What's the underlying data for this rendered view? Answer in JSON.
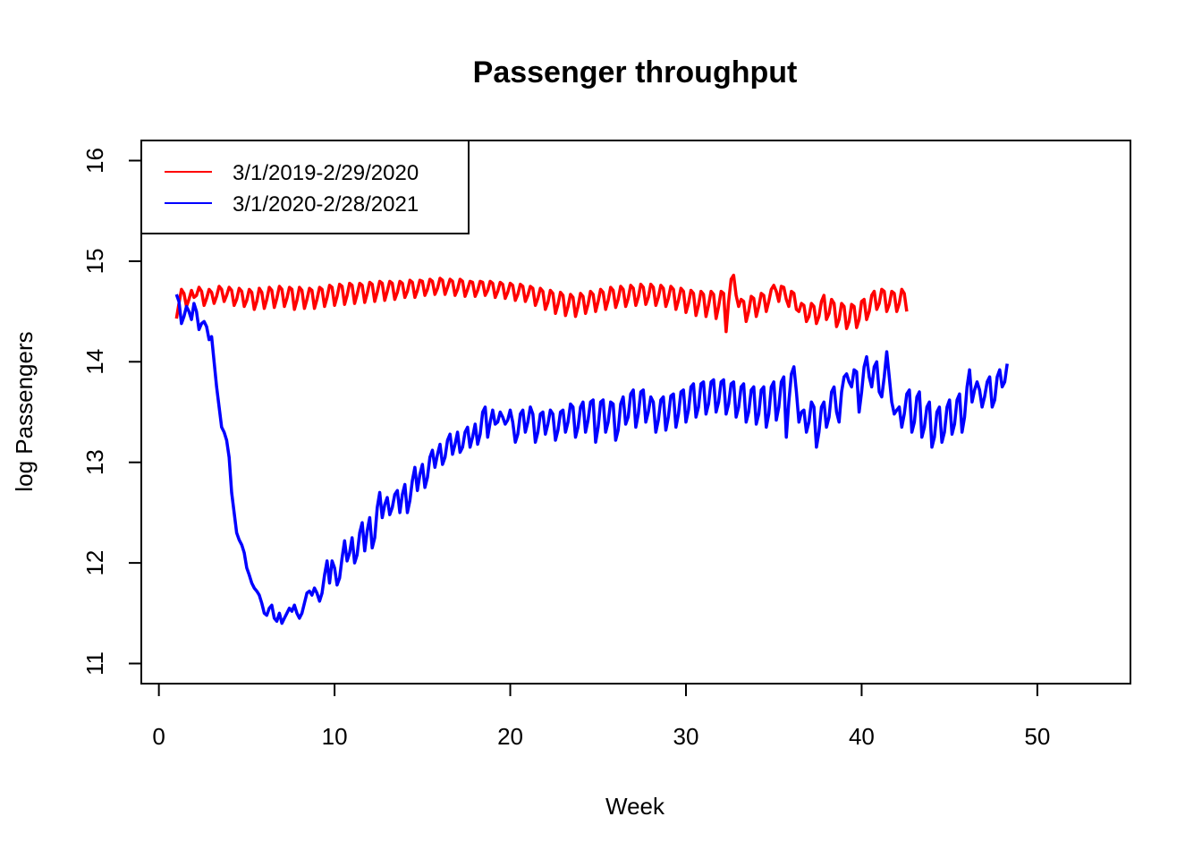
{
  "chart_data": {
    "type": "line",
    "title": "Passenger throughput",
    "xlabel": "Week",
    "ylabel": "log Passengers",
    "xlim": [
      -1,
      55.3
    ],
    "ylim": [
      10.8,
      16.2
    ],
    "x_ticks": [
      0,
      10,
      20,
      30,
      40,
      50
    ],
    "y_ticks": [
      11,
      12,
      13,
      14,
      15,
      16
    ],
    "legend_position": "top-left",
    "series": [
      {
        "name": "3/1/2019-2/29/2020",
        "color": "#ff0000",
        "x_start": 1,
        "x_step": 0.142857,
        "values": [
          14.43,
          14.58,
          14.72,
          14.68,
          14.55,
          14.62,
          14.71,
          14.64,
          14.66,
          14.74,
          14.7,
          14.56,
          14.63,
          14.72,
          14.69,
          14.58,
          14.65,
          14.75,
          14.72,
          14.6,
          14.66,
          14.74,
          14.71,
          14.56,
          14.62,
          14.73,
          14.7,
          14.55,
          14.61,
          14.72,
          14.69,
          14.52,
          14.6,
          14.73,
          14.69,
          14.53,
          14.62,
          14.74,
          14.71,
          14.54,
          14.63,
          14.75,
          14.72,
          14.55,
          14.63,
          14.74,
          14.72,
          14.52,
          14.61,
          14.74,
          14.71,
          14.53,
          14.62,
          14.73,
          14.71,
          14.53,
          14.62,
          14.74,
          14.72,
          14.55,
          14.64,
          14.76,
          14.74,
          14.56,
          14.65,
          14.77,
          14.75,
          14.57,
          14.66,
          14.78,
          14.76,
          14.58,
          14.67,
          14.78,
          14.76,
          14.59,
          14.68,
          14.79,
          14.77,
          14.6,
          14.69,
          14.8,
          14.78,
          14.61,
          14.7,
          14.8,
          14.78,
          14.62,
          14.69,
          14.8,
          14.78,
          14.64,
          14.7,
          14.81,
          14.79,
          14.64,
          14.71,
          14.81,
          14.8,
          14.66,
          14.72,
          14.82,
          14.8,
          14.67,
          14.73,
          14.83,
          14.81,
          14.67,
          14.74,
          14.82,
          14.8,
          14.66,
          14.72,
          14.82,
          14.8,
          14.65,
          14.72,
          14.8,
          14.79,
          14.65,
          14.71,
          14.8,
          14.79,
          14.66,
          14.71,
          14.8,
          14.78,
          14.64,
          14.7,
          14.79,
          14.77,
          14.63,
          14.69,
          14.78,
          14.76,
          14.61,
          14.67,
          14.77,
          14.75,
          14.6,
          14.66,
          14.75,
          14.73,
          14.56,
          14.63,
          14.73,
          14.7,
          14.52,
          14.59,
          14.71,
          14.68,
          14.48,
          14.57,
          14.69,
          14.66,
          14.46,
          14.55,
          14.67,
          14.64,
          14.45,
          14.55,
          14.68,
          14.65,
          14.48,
          14.57,
          14.7,
          14.67,
          14.5,
          14.6,
          14.72,
          14.69,
          14.52,
          14.61,
          14.74,
          14.71,
          14.54,
          14.62,
          14.75,
          14.72,
          14.55,
          14.63,
          14.76,
          14.73,
          14.56,
          14.64,
          14.77,
          14.74,
          14.57,
          14.64,
          14.77,
          14.74,
          14.56,
          14.64,
          14.76,
          14.73,
          14.55,
          14.63,
          14.75,
          14.72,
          14.52,
          14.61,
          14.73,
          14.7,
          14.49,
          14.58,
          14.71,
          14.68,
          14.46,
          14.56,
          14.7,
          14.67,
          14.45,
          14.56,
          14.7,
          14.67,
          14.43,
          14.55,
          14.7,
          14.68,
          14.3,
          14.6,
          14.82,
          14.86,
          14.66,
          14.55,
          14.62,
          14.6,
          14.4,
          14.5,
          14.65,
          14.63,
          14.45,
          14.55,
          14.68,
          14.66,
          14.5,
          14.6,
          14.72,
          14.76,
          14.7,
          14.6,
          14.75,
          14.74,
          14.62,
          14.55,
          14.7,
          14.68,
          14.52,
          14.5,
          14.58,
          14.56,
          14.4,
          14.45,
          14.58,
          14.55,
          14.38,
          14.45,
          14.6,
          14.66,
          14.42,
          14.48,
          14.62,
          14.58,
          14.35,
          14.42,
          14.58,
          14.55,
          14.33,
          14.4,
          14.57,
          14.55,
          14.34,
          14.42,
          14.6,
          14.62,
          14.42,
          14.5,
          14.66,
          14.7,
          14.52,
          14.58,
          14.72,
          14.7,
          14.5,
          14.57,
          14.7,
          14.68,
          14.5,
          14.58,
          14.72,
          14.68,
          14.5
        ]
      },
      {
        "name": "3/1/2020-2/28/2021",
        "color": "#0000ff",
        "x_start": 1,
        "x_step": 0.142857,
        "values": [
          14.67,
          14.6,
          14.38,
          14.45,
          14.55,
          14.5,
          14.42,
          14.58,
          14.5,
          14.32,
          14.38,
          14.4,
          14.35,
          14.22,
          14.25,
          14.0,
          13.75,
          13.55,
          13.35,
          13.3,
          13.22,
          13.05,
          12.7,
          12.5,
          12.3,
          12.23,
          12.18,
          12.1,
          11.95,
          11.88,
          11.8,
          11.75,
          11.72,
          11.68,
          11.6,
          11.5,
          11.48,
          11.55,
          11.58,
          11.45,
          11.42,
          11.5,
          11.4,
          11.45,
          11.5,
          11.55,
          11.52,
          11.58,
          11.5,
          11.45,
          11.5,
          11.6,
          11.7,
          11.72,
          11.68,
          11.75,
          11.7,
          11.62,
          11.7,
          11.88,
          12.02,
          11.8,
          12.02,
          11.95,
          11.78,
          11.85,
          12.05,
          12.22,
          12.02,
          12.1,
          12.25,
          12.0,
          12.08,
          12.3,
          12.4,
          12.12,
          12.32,
          12.45,
          12.15,
          12.25,
          12.55,
          12.7,
          12.45,
          12.58,
          12.65,
          12.48,
          12.55,
          12.68,
          12.72,
          12.5,
          12.68,
          12.78,
          12.5,
          12.62,
          12.82,
          12.95,
          12.72,
          12.88,
          12.98,
          12.75,
          12.85,
          13.05,
          13.12,
          12.95,
          13.08,
          13.18,
          12.98,
          13.05,
          13.22,
          13.28,
          13.08,
          13.18,
          13.3,
          13.1,
          13.15,
          13.3,
          13.35,
          13.15,
          13.25,
          13.38,
          13.18,
          13.28,
          13.5,
          13.55,
          13.25,
          13.4,
          13.52,
          13.38,
          13.4,
          13.5,
          13.45,
          13.38,
          13.42,
          13.52,
          13.4,
          13.2,
          13.28,
          13.48,
          13.52,
          13.3,
          13.4,
          13.55,
          13.48,
          13.2,
          13.3,
          13.48,
          13.5,
          13.28,
          13.38,
          13.52,
          13.48,
          13.22,
          13.32,
          13.5,
          13.52,
          13.3,
          13.4,
          13.58,
          13.55,
          13.25,
          13.35,
          13.55,
          13.6,
          13.3,
          13.42,
          13.6,
          13.62,
          13.2,
          13.35,
          13.6,
          13.62,
          13.3,
          13.4,
          13.6,
          13.58,
          13.22,
          13.32,
          13.58,
          13.65,
          13.38,
          13.45,
          13.68,
          13.72,
          13.35,
          13.48,
          13.7,
          13.72,
          13.4,
          13.5,
          13.65,
          13.6,
          13.3,
          13.42,
          13.62,
          13.65,
          13.32,
          13.45,
          13.66,
          13.68,
          13.35,
          13.48,
          13.7,
          13.72,
          13.4,
          13.52,
          13.75,
          13.78,
          13.45,
          13.55,
          13.78,
          13.8,
          13.48,
          13.58,
          13.8,
          13.82,
          13.5,
          13.6,
          13.8,
          13.82,
          13.48,
          13.58,
          13.78,
          13.8,
          13.45,
          13.55,
          13.75,
          13.78,
          13.4,
          13.5,
          13.72,
          13.75,
          13.38,
          13.48,
          13.72,
          13.75,
          13.35,
          13.48,
          13.75,
          13.8,
          13.42,
          13.55,
          13.8,
          13.85,
          13.25,
          13.6,
          13.88,
          13.95,
          13.7,
          13.4,
          13.5,
          13.52,
          13.3,
          13.4,
          13.6,
          13.55,
          13.15,
          13.3,
          13.55,
          13.6,
          13.35,
          13.45,
          13.7,
          13.75,
          13.5,
          13.4,
          13.7,
          13.85,
          13.88,
          13.8,
          13.75,
          13.92,
          13.9,
          13.5,
          13.7,
          13.95,
          14.05,
          13.85,
          13.75,
          13.95,
          14.0,
          13.7,
          13.65,
          13.85,
          14.1,
          13.85,
          13.6,
          13.48,
          13.52,
          13.55,
          13.35,
          13.48,
          13.68,
          13.72,
          13.3,
          13.4,
          13.65,
          13.7,
          13.25,
          13.35,
          13.55,
          13.6,
          13.15,
          13.25,
          13.5,
          13.55,
          13.2,
          13.3,
          13.55,
          13.62,
          13.28,
          13.38,
          13.62,
          13.68,
          13.3,
          13.45,
          13.75,
          13.92,
          13.6,
          13.72,
          13.8,
          13.72,
          13.55,
          13.65,
          13.8,
          13.85,
          13.55,
          13.62,
          13.85,
          13.92,
          13.75,
          13.8,
          13.98
        ]
      }
    ]
  }
}
